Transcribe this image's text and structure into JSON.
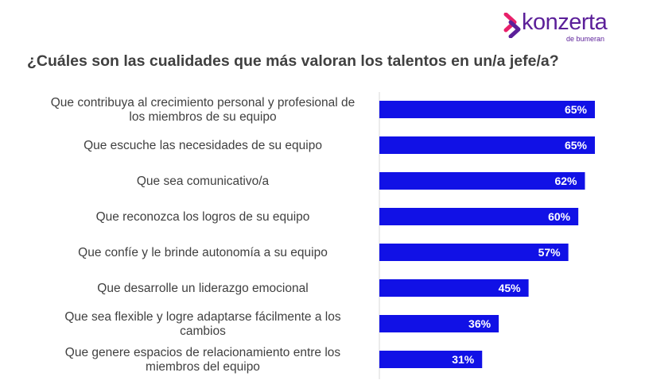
{
  "logo": {
    "text": "konzerta",
    "sub": "de bumeran"
  },
  "colors": {
    "bar": "#1111e6",
    "logo": "#5b1f99",
    "logo_accent": "#e8206a"
  },
  "chart_data": {
    "type": "bar",
    "orientation": "horizontal",
    "title": "¿Cuáles son las cualidades que más valoran los talentos en un/a  jefe/a?",
    "categories": [
      "Que contribuya al crecimiento personal y profesional de los miembros de su equipo",
      "Que escuche las necesidades de su equipo",
      "Que sea comunicativo/a",
      "Que reconozca los logros de su equipo",
      "Que confíe y le brinde autonomía a su equipo",
      "Que desarrolle un liderazgo emocional",
      "Que sea flexible y logre adaptarse fácilmente a los cambios",
      "Que genere espacios de relacionamiento entre los miembros del equipo"
    ],
    "category_lines": [
      [
        "Que contribuya al crecimiento personal y profesional de",
        "los miembros de su equipo"
      ],
      [
        "Que escuche las necesidades de su equipo"
      ],
      [
        "Que sea comunicativo/a"
      ],
      [
        "Que reconozca los logros de su equipo"
      ],
      [
        "Que confíe y le brinde autonomía a su equipo"
      ],
      [
        "Que desarrolle un liderazgo emocional"
      ],
      [
        "Que sea flexible y logre adaptarse fácilmente a los",
        "cambios"
      ],
      [
        "Que genere espacios de relacionamiento entre los",
        "miembros del equipo"
      ]
    ],
    "values": [
      65,
      65,
      62,
      60,
      57,
      45,
      36,
      31
    ],
    "data_labels": [
      "65%",
      "65%",
      "62%",
      "60%",
      "57%",
      "45%",
      "36%",
      "31%"
    ],
    "xlim": [
      0,
      65
    ],
    "grid": false,
    "legend": "none"
  }
}
